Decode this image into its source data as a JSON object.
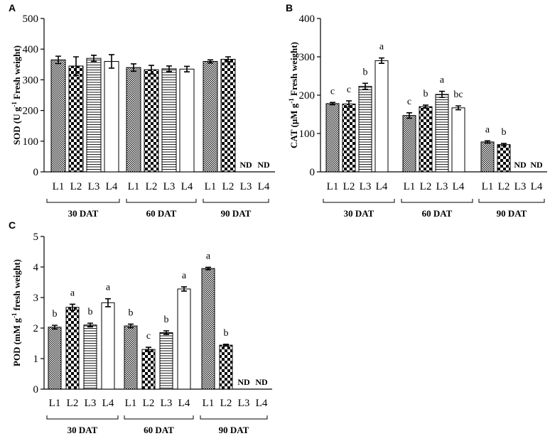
{
  "chart_data": [
    {
      "id": "A",
      "panel_label": "A",
      "type": "bar",
      "ylabel": "SOD (U g-1 Fresh weight)",
      "ylabel_parts": {
        "pre": "SOD (U g",
        "sup": "-1",
        "post": " Fresh weight)"
      },
      "ylim": [
        0,
        500
      ],
      "yticks": [
        0,
        100,
        200,
        300,
        400,
        500
      ],
      "groups": [
        "30 DAT",
        "60 DAT",
        "90 DAT"
      ],
      "categories": [
        "L1",
        "L2",
        "L3",
        "L4"
      ],
      "values": [
        [
          365,
          345,
          370,
          360
        ],
        [
          340,
          333,
          336,
          335
        ],
        [
          360,
          367,
          null,
          null
        ]
      ],
      "errors": [
        [
          12,
          30,
          10,
          22
        ],
        [
          12,
          14,
          9,
          9
        ],
        [
          5,
          8,
          null,
          null
        ]
      ],
      "letters": [
        [
          "",
          "",
          "",
          ""
        ],
        [
          "",
          "",
          "",
          ""
        ],
        [
          "",
          "",
          "",
          ""
        ]
      ],
      "nd_label": "ND"
    },
    {
      "id": "B",
      "panel_label": "B",
      "type": "bar",
      "ylabel": "CAT (μM g-1 Fresh weight)",
      "ylabel_parts": {
        "pre": "CAT (μM g",
        "sup": "-1",
        "post": " Fresh weight)"
      },
      "ylim": [
        0,
        400
      ],
      "yticks": [
        0,
        100,
        200,
        300,
        400
      ],
      "groups": [
        "30 DAT",
        "60 DAT",
        "90 DAT"
      ],
      "categories": [
        "L1",
        "L2",
        "L3",
        "L4"
      ],
      "values": [
        [
          178,
          177,
          223,
          290
        ],
        [
          147,
          170,
          202,
          167
        ],
        [
          78,
          71,
          null,
          null
        ]
      ],
      "errors": [
        [
          3,
          8,
          8,
          7
        ],
        [
          7,
          4,
          8,
          5
        ],
        [
          3,
          3,
          null,
          null
        ]
      ],
      "letters": [
        [
          "c",
          "c",
          "b",
          "a"
        ],
        [
          "c",
          "b",
          "a",
          "bc"
        ],
        [
          "a",
          "b",
          "",
          ""
        ]
      ],
      "nd_label": "ND"
    },
    {
      "id": "C",
      "panel_label": "C",
      "type": "bar",
      "ylabel": "POD (mM g-1 fresh weight)",
      "ylabel_parts": {
        "pre": "POD (mM g",
        "sup": "-1",
        "post": " fresh weight)"
      },
      "ylim": [
        0,
        5
      ],
      "yticks": [
        0,
        1,
        2,
        3,
        4,
        5
      ],
      "groups": [
        "30 DAT",
        "60 DAT",
        "90 DAT"
      ],
      "categories": [
        "L1",
        "L2",
        "L3",
        "L4"
      ],
      "values": [
        [
          2.03,
          2.68,
          2.1,
          2.83
        ],
        [
          2.07,
          1.3,
          1.85,
          3.28
        ],
        [
          3.95,
          1.44,
          null,
          null
        ]
      ],
      "errors": [
        [
          0.06,
          0.1,
          0.06,
          0.13
        ],
        [
          0.06,
          0.07,
          0.06,
          0.07
        ],
        [
          0.04,
          0.03,
          null,
          null
        ]
      ],
      "letters": [
        [
          "b",
          "a",
          "b",
          "a"
        ],
        [
          "b",
          "c",
          "b",
          "a"
        ],
        [
          "a",
          "b",
          "",
          ""
        ]
      ],
      "nd_label": "ND"
    }
  ]
}
